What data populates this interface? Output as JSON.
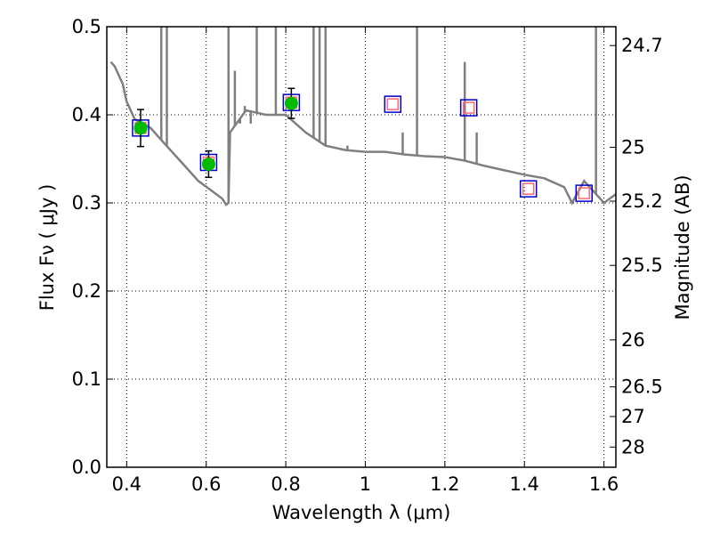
{
  "chart_data": {
    "type": "scatter",
    "xlabel": "Wavelength  λ (μm)",
    "ylabel": "Flux  Fν ( μJy )",
    "y2label": "Magnitude (AB)",
    "xlim": [
      0.35,
      1.63
    ],
    "ylim": [
      0.0,
      0.5
    ],
    "grid": true,
    "x_ticks": [
      0.4,
      0.6,
      0.8,
      1.0,
      1.2,
      1.4,
      1.6
    ],
    "x_tick_labels": [
      "0.4",
      "0.6",
      "0.8",
      "1",
      "1.2",
      "1.4",
      "1.6"
    ],
    "y_ticks": [
      0.0,
      0.1,
      0.2,
      0.3,
      0.4,
      0.5
    ],
    "y_tick_labels": [
      "0.0",
      "0.1",
      "0.2",
      "0.3",
      "0.4",
      "0.5"
    ],
    "mag_ticks": [
      24.7,
      25,
      25.2,
      25.5,
      26,
      26.5,
      27,
      28
    ],
    "mag_tick_labels": [
      "24.7",
      "25",
      "25.2",
      "25.5",
      "26",
      "26.5",
      "27",
      "28"
    ],
    "colors": {
      "model": "#7f7f7f",
      "observed": "#00bb00",
      "box": "#0000cc",
      "model_box": "#ff6677",
      "errorbar": "#000000",
      "grid": "#000000"
    },
    "model_spectrum": {
      "x": [
        0.36,
        0.37,
        0.38,
        0.39,
        0.4,
        0.42,
        0.44,
        0.46,
        0.48,
        0.5,
        0.52,
        0.55,
        0.58,
        0.61,
        0.64,
        0.65,
        0.656,
        0.66,
        0.7,
        0.75,
        0.8,
        0.85,
        0.9,
        0.95,
        1.0,
        1.05,
        1.1,
        1.15,
        1.2,
        1.25,
        1.3,
        1.35,
        1.4,
        1.45,
        1.5,
        1.52,
        1.55,
        1.6,
        1.63
      ],
      "y": [
        0.46,
        0.455,
        0.445,
        0.435,
        0.415,
        0.395,
        0.39,
        0.385,
        0.375,
        0.365,
        0.355,
        0.34,
        0.325,
        0.315,
        0.305,
        0.298,
        0.3,
        0.38,
        0.405,
        0.4,
        0.4,
        0.38,
        0.365,
        0.36,
        0.358,
        0.358,
        0.355,
        0.353,
        0.352,
        0.348,
        0.342,
        0.337,
        0.332,
        0.328,
        0.318,
        0.3,
        0.325,
        0.3,
        0.31
      ]
    },
    "emission_lines": [
      {
        "x": 0.487,
        "y": 0.5
      },
      {
        "x": 0.501,
        "y": 0.5
      },
      {
        "x": 0.656,
        "y": 0.5
      },
      {
        "x": 0.672,
        "y": 0.45
      },
      {
        "x": 0.685,
        "y": 0.39
      },
      {
        "x": 0.697,
        "y": 0.41
      },
      {
        "x": 0.712,
        "y": 0.39
      },
      {
        "x": 0.727,
        "y": 0.5
      },
      {
        "x": 0.775,
        "y": 0.5
      },
      {
        "x": 0.87,
        "y": 0.5
      },
      {
        "x": 0.885,
        "y": 0.5
      },
      {
        "x": 0.9,
        "y": 0.5
      },
      {
        "x": 0.955,
        "y": 0.365
      },
      {
        "x": 1.094,
        "y": 0.38
      },
      {
        "x": 1.13,
        "y": 0.5
      },
      {
        "x": 1.25,
        "y": 0.46
      },
      {
        "x": 1.28,
        "y": 0.38
      },
      {
        "x": 1.58,
        "y": 0.5
      }
    ],
    "observed": [
      {
        "x": 0.435,
        "y": 0.385,
        "err": 0.021
      },
      {
        "x": 0.606,
        "y": 0.344,
        "err": 0.015
      },
      {
        "x": 0.814,
        "y": 0.413,
        "err": 0.017
      }
    ],
    "model_photometry": [
      {
        "x": 0.435,
        "y": 0.385
      },
      {
        "x": 0.606,
        "y": 0.346
      },
      {
        "x": 0.814,
        "y": 0.414
      },
      {
        "x": 1.069,
        "y": 0.412
      },
      {
        "x": 1.26,
        "y": 0.408
      },
      {
        "x": 1.41,
        "y": 0.316
      },
      {
        "x": 1.55,
        "y": 0.311
      }
    ]
  }
}
